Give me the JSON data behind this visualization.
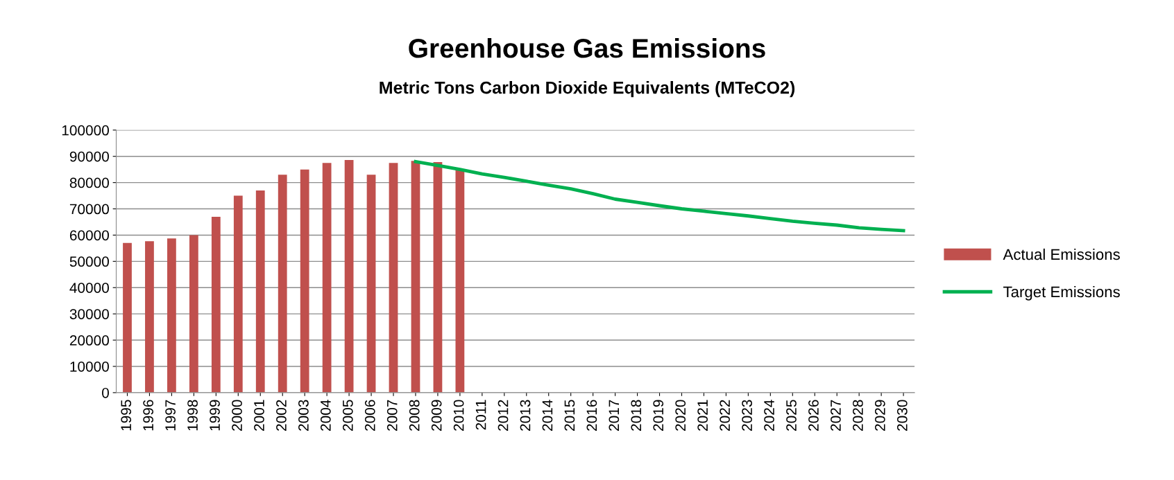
{
  "chart_data": {
    "type": "bar",
    "title": "Greenhouse Gas Emissions",
    "subtitle": "Metric Tons Carbon Dioxide Equivalents (MTeCO2)",
    "categories": [
      "1995",
      "1996",
      "1997",
      "1998",
      "1999",
      "2000",
      "2001",
      "2002",
      "2003",
      "2004",
      "2005",
      "2006",
      "2007",
      "2008",
      "2009",
      "2010",
      "2011",
      "2012",
      "2013",
      "2014",
      "2015",
      "2016",
      "2017",
      "2018",
      "2019",
      "2020",
      "2021",
      "2022",
      "2023",
      "2024",
      "2025",
      "2026",
      "2027",
      "2028",
      "2029",
      "2030"
    ],
    "series": [
      {
        "name": "Actual Emissions",
        "color": "#c0504d",
        "values": [
          57000,
          57700,
          58700,
          60000,
          67000,
          75000,
          77000,
          83000,
          85000,
          87500,
          88600,
          83000,
          87500,
          88300,
          87800,
          85000,
          null,
          null,
          null,
          null,
          null,
          null,
          null,
          null,
          null,
          null,
          null,
          null,
          null,
          null,
          null,
          null,
          null,
          null,
          null,
          null
        ]
      },
      {
        "name": "Target Emissions",
        "type": "line",
        "color": "#00b050",
        "values": [
          null,
          null,
          null,
          null,
          null,
          null,
          null,
          null,
          null,
          null,
          null,
          null,
          null,
          88000,
          86500,
          85000,
          83300,
          82000,
          80500,
          79000,
          77600,
          75800,
          73700,
          72500,
          71200,
          70000,
          69100,
          68200,
          67300,
          66300,
          65300,
          64500,
          63800,
          62800,
          62200,
          61700
        ]
      }
    ],
    "ylim": [
      0,
      100000
    ],
    "yticks": [
      0,
      10000,
      20000,
      30000,
      40000,
      50000,
      60000,
      70000,
      80000,
      90000,
      100000
    ],
    "grid": "y",
    "legend": "right",
    "marker": "none",
    "line_style": "solid"
  }
}
